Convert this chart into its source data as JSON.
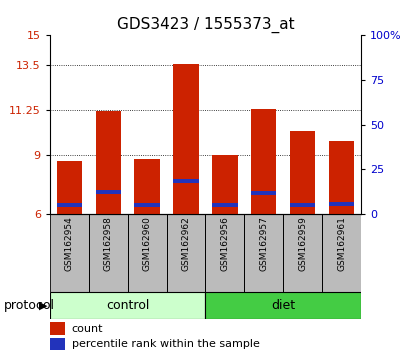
{
  "title": "GDS3423 / 1555373_at",
  "samples": [
    "GSM162954",
    "GSM162958",
    "GSM162960",
    "GSM162962",
    "GSM162956",
    "GSM162957",
    "GSM162959",
    "GSM162961"
  ],
  "bar_heights": [
    8.7,
    11.2,
    8.8,
    13.55,
    9.0,
    11.28,
    10.2,
    9.7
  ],
  "blue_positions": [
    6.35,
    7.0,
    6.35,
    7.55,
    6.35,
    6.95,
    6.35,
    6.4
  ],
  "blue_heights": [
    0.22,
    0.22,
    0.22,
    0.22,
    0.22,
    0.22,
    0.22,
    0.22
  ],
  "ylim": [
    6,
    15
  ],
  "yticks": [
    6,
    9,
    11.25,
    13.5,
    15
  ],
  "ytick_labels": [
    "6",
    "9",
    "11.25",
    "13.5",
    "15"
  ],
  "right_yticks": [
    0,
    25,
    50,
    75,
    100
  ],
  "right_ytick_labels": [
    "0",
    "25",
    "50",
    "75",
    "100%"
  ],
  "bar_color": "#cc2200",
  "blue_color": "#2233bb",
  "grid_color": "#555555",
  "bar_width": 0.65,
  "ctrl_color": "#ccffcc",
  "diet_color": "#44cc44",
  "label_bg_color": "#bbbbbb",
  "protocol_label": "protocol",
  "legend_count": "count",
  "legend_percentile": "percentile rank within the sample",
  "left_tick_color": "#cc2200",
  "right_tick_color": "#0000cc",
  "title_fontsize": 11,
  "tick_fontsize": 8,
  "sample_fontsize": 6.5,
  "group_fontsize": 9,
  "legend_fontsize": 8
}
